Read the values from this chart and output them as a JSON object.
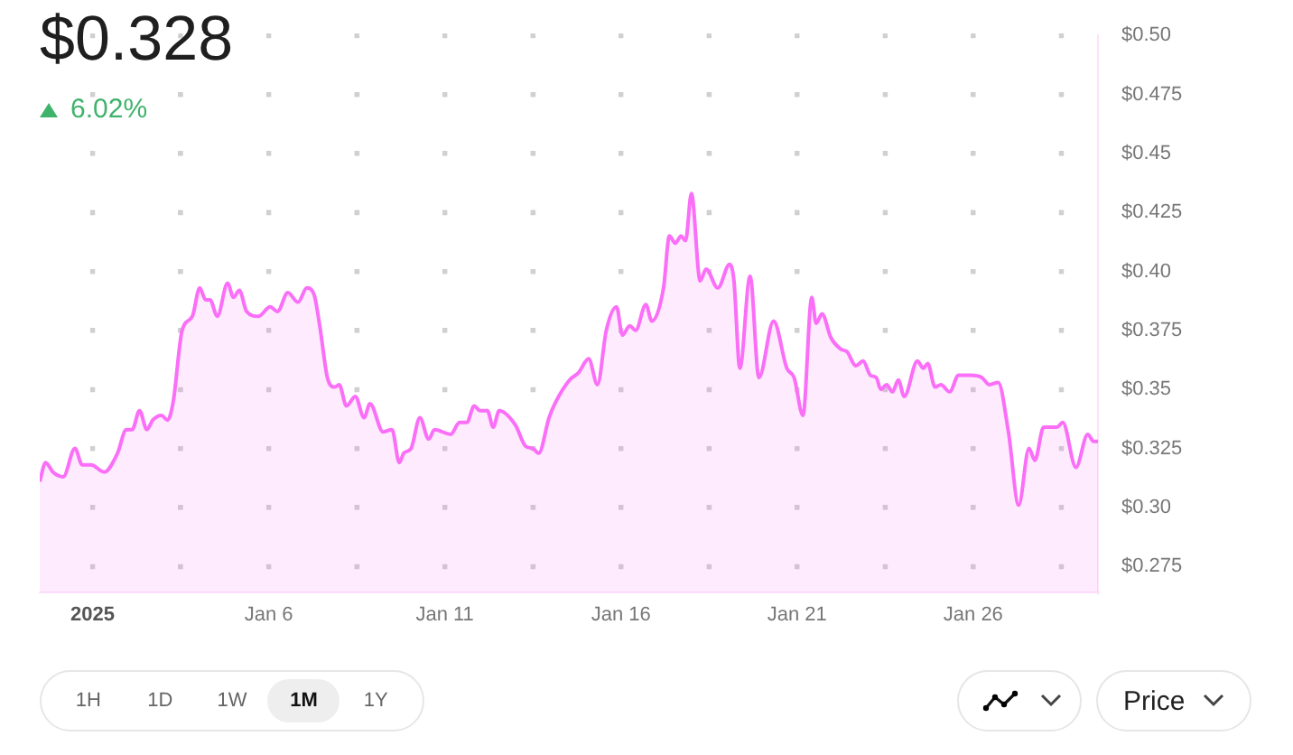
{
  "chart_data": {
    "type": "area",
    "title": "$0.328",
    "subtitle": "6.02%",
    "annotations": [
      "1H",
      "1D",
      "1W",
      "1M",
      "1Y",
      "Price"
    ],
    "x": [
      "2024-12-30T12:00",
      "2024-12-30T16:00",
      "2024-12-30T21:00",
      "2024-12-31T04:00",
      "2024-12-31T12:00",
      "2024-12-31T17:00",
      "2024-12-31T23:00",
      "2025-01-01T08:00",
      "2025-01-01T17:00",
      "2025-01-01T23:00",
      "2025-01-02T03:00",
      "2025-01-02T08:00",
      "2025-01-02T13:00",
      "2025-01-02T17:00",
      "2025-01-02T23:00",
      "2025-01-03T03:00",
      "2025-01-03T07:00",
      "2025-01-03T13:00",
      "2025-01-03T20:00",
      "2025-01-04T01:00",
      "2025-01-04T05:00",
      "2025-01-04T08:00",
      "2025-01-04T13:00",
      "2025-01-04T20:00",
      "2025-01-05T00:00",
      "2025-01-05T04:00",
      "2025-01-05T09:00",
      "2025-01-05T17:00",
      "2025-01-06T01:00",
      "2025-01-06T06:00",
      "2025-01-06T13:00",
      "2025-01-06T20:00",
      "2025-01-07T02:00",
      "2025-01-07T07:00",
      "2025-01-07T11:00",
      "2025-01-07T16:00",
      "2025-01-07T21:00",
      "2025-01-08T00:00",
      "2025-01-08T05:00",
      "2025-01-08T11:00",
      "2025-01-08T17:00",
      "2025-01-08T21:00",
      "2025-01-09T06:00",
      "2025-01-09T12:00",
      "2025-01-09T17:00",
      "2025-01-09T20:00",
      "2025-01-10T01:00",
      "2025-01-10T07:00",
      "2025-01-10T13:00",
      "2025-01-10T17:00",
      "2025-01-11T04:00",
      "2025-01-11T10:00",
      "2025-01-11T15:00",
      "2025-01-11T20:00",
      "2025-01-12T00:00",
      "2025-01-12T05:00",
      "2025-01-12T09:00",
      "2025-01-12T13:00",
      "2025-01-13T00:00",
      "2025-01-13T07:00",
      "2025-01-13T12:00",
      "2025-01-13T16:00",
      "2025-01-13T23:00",
      "2025-01-14T03:00",
      "2025-01-14T13:00",
      "2025-01-14T19:00",
      "2025-01-15T02:00",
      "2025-01-15T08:00",
      "2025-01-15T14:00",
      "2025-01-15T21:00",
      "2025-01-16T01:00",
      "2025-01-16T06:00",
      "2025-01-16T10:00",
      "2025-01-16T17:00",
      "2025-01-16T21:00",
      "2025-01-17T05:00",
      "2025-01-17T09:00",
      "2025-01-17T13:00",
      "2025-01-17T17:00",
      "2025-01-17T20:00",
      "2025-01-18T00:00",
      "2025-01-18T06:00",
      "2025-01-18T10:00",
      "2025-01-18T18:00",
      "2025-01-19T02:00",
      "2025-01-19T05:00",
      "2025-01-19T09:00",
      "2025-01-19T16:00",
      "2025-01-19T22:00",
      "2025-01-20T08:00",
      "2025-01-20T17:00",
      "2025-01-20T22:00",
      "2025-01-21T04:00",
      "2025-01-21T10:00",
      "2025-01-21T13:00",
      "2025-01-21T17:00",
      "2025-01-21T23:00",
      "2025-01-22T06:00",
      "2025-01-22T10:00",
      "2025-01-22T16:00",
      "2025-01-22T21:00",
      "2025-01-23T02:00",
      "2025-01-23T06:00",
      "2025-01-23T09:00",
      "2025-01-23T13:00",
      "2025-01-23T17:00",
      "2025-01-23T21:00",
      "2025-01-24T01:00",
      "2025-01-24T10:00",
      "2025-01-24T14:00",
      "2025-01-24T17:00",
      "2025-01-24T22:00",
      "2025-01-25T02:00",
      "2025-01-25T08:00",
      "2025-01-25T14:00",
      "2025-01-25T22:00",
      "2025-01-26T06:00",
      "2025-01-26T11:00",
      "2025-01-26T17:00",
      "2025-01-27T00:00",
      "2025-01-27T07:00",
      "2025-01-27T14:00",
      "2025-01-27T18:00",
      "2025-01-28T00:00",
      "2025-01-28T09:00",
      "2025-01-28T13:00",
      "2025-01-28T22:00",
      "2025-01-29T06:00",
      "2025-01-29T10:00",
      "2025-01-29T13:00"
    ],
    "series": [
      {
        "color": "#fa6ef8",
        "values": [
          0.311,
          0.319,
          0.315,
          0.313,
          0.325,
          0.318,
          0.318,
          0.315,
          0.323,
          0.333,
          0.333,
          0.341,
          0.333,
          0.337,
          0.339,
          0.337,
          0.345,
          0.375,
          0.381,
          0.393,
          0.388,
          0.388,
          0.381,
          0.395,
          0.389,
          0.392,
          0.383,
          0.381,
          0.385,
          0.383,
          0.391,
          0.387,
          0.393,
          0.39,
          0.376,
          0.355,
          0.351,
          0.352,
          0.343,
          0.347,
          0.338,
          0.344,
          0.332,
          0.333,
          0.319,
          0.323,
          0.325,
          0.338,
          0.329,
          0.333,
          0.331,
          0.336,
          0.336,
          0.343,
          0.341,
          0.341,
          0.334,
          0.341,
          0.335,
          0.326,
          0.325,
          0.323,
          0.338,
          0.344,
          0.354,
          0.357,
          0.363,
          0.352,
          0.375,
          0.385,
          0.373,
          0.377,
          0.375,
          0.386,
          0.379,
          0.393,
          0.415,
          0.412,
          0.415,
          0.413,
          0.433,
          0.396,
          0.401,
          0.393,
          0.403,
          0.396,
          0.359,
          0.398,
          0.355,
          0.379,
          0.359,
          0.355,
          0.339,
          0.389,
          0.378,
          0.382,
          0.372,
          0.367,
          0.366,
          0.36,
          0.362,
          0.356,
          0.355,
          0.35,
          0.352,
          0.349,
          0.354,
          0.347,
          0.362,
          0.359,
          0.361,
          0.351,
          0.352,
          0.349,
          0.356,
          0.356,
          0.355,
          0.352,
          0.353,
          0.332,
          0.301,
          0.325,
          0.32,
          0.334,
          0.334,
          0.336,
          0.317,
          0.331,
          0.328,
          0.328
        ]
      }
    ],
    "xlim": [
      "2024-12-30T12:00",
      "2025-01-29T13:00"
    ],
    "xticks": [
      {
        "value": "2025-01-01",
        "label": "2025"
      },
      {
        "value": "2025-01-03T12:00",
        "label": null
      },
      {
        "value": "2025-01-06",
        "label": "Jan 6"
      },
      {
        "value": "2025-01-08T12:00",
        "label": null
      },
      {
        "value": "2025-01-11",
        "label": "Jan 11"
      },
      {
        "value": "2025-01-13T12:00",
        "label": null
      },
      {
        "value": "2025-01-16",
        "label": "Jan 16"
      },
      {
        "value": "2025-01-18T12:00",
        "label": null
      },
      {
        "value": "2025-01-21",
        "label": "Jan 21"
      },
      {
        "value": "2025-01-23T12:00",
        "label": null
      },
      {
        "value": "2025-01-26",
        "label": "Jan 26"
      },
      {
        "value": "2025-01-28T12:00",
        "label": null
      }
    ],
    "ylim": [
      0.264,
      0.5
    ],
    "yticks": [
      {
        "value": 0.5,
        "label": "$0.50"
      },
      {
        "value": 0.475,
        "label": "$0.475"
      },
      {
        "value": 0.45,
        "label": "$0.45"
      },
      {
        "value": 0.425,
        "label": "$0.425"
      },
      {
        "value": 0.4,
        "label": "$0.40"
      },
      {
        "value": 0.375,
        "label": "$0.375"
      },
      {
        "value": 0.35,
        "label": "$0.35"
      },
      {
        "value": 0.325,
        "label": "$0.325"
      },
      {
        "value": 0.3,
        "label": "$0.30"
      },
      {
        "value": 0.275,
        "label": "$0.275"
      }
    ],
    "grid": true
  }
}
